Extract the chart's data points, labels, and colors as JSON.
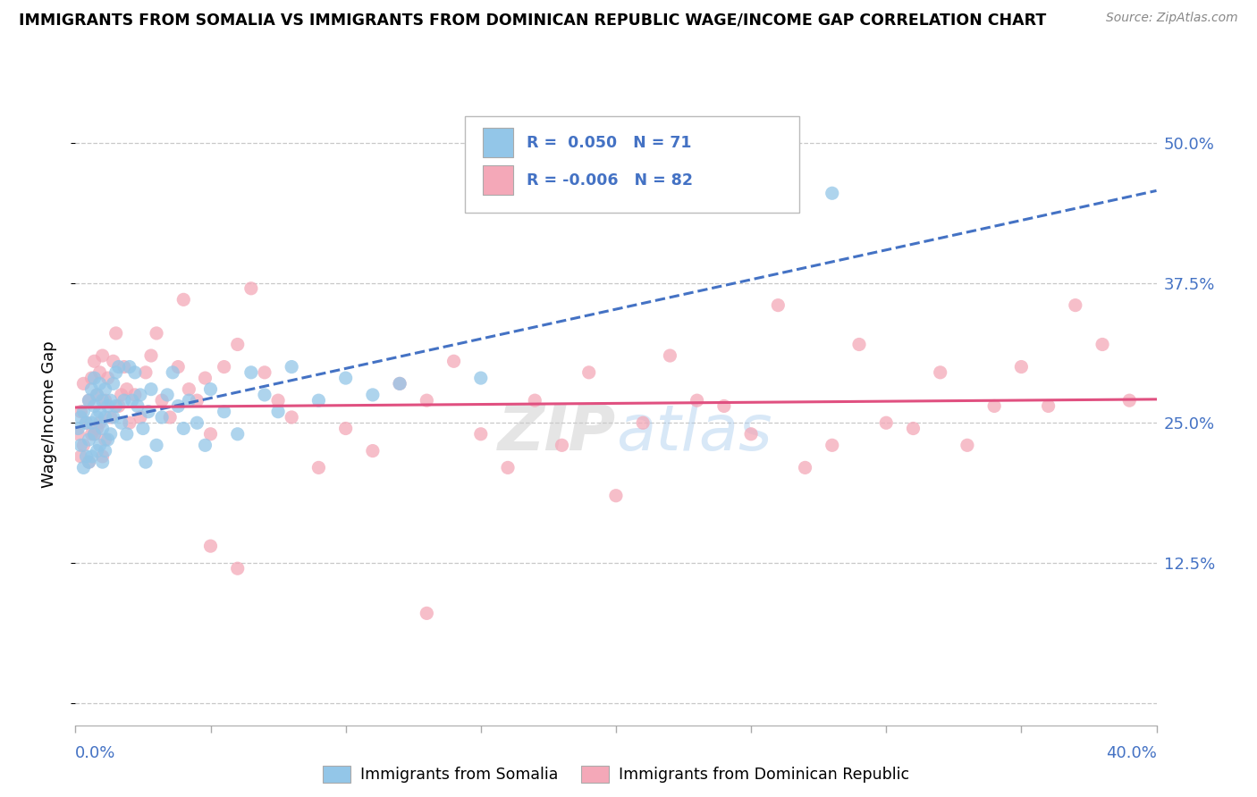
{
  "title": "IMMIGRANTS FROM SOMALIA VS IMMIGRANTS FROM DOMINICAN REPUBLIC WAGE/INCOME GAP CORRELATION CHART",
  "source": "Source: ZipAtlas.com",
  "ylabel": "Wage/Income Gap",
  "right_yticklabels": [
    "",
    "12.5%",
    "25.0%",
    "37.5%",
    "50.0%"
  ],
  "right_yticks": [
    0.0,
    0.125,
    0.25,
    0.375,
    0.5
  ],
  "xlim": [
    0.0,
    0.4
  ],
  "ylim": [
    -0.02,
    0.535
  ],
  "color_somalia": "#93C6E8",
  "color_dr": "#F4A8B8",
  "color_somalia_line": "#4472C4",
  "color_dr_line": "#E05080",
  "legend_label1": "Immigrants from Somalia",
  "legend_label2": "Immigrants from Dominican Republic",
  "somalia_x": [
    0.001,
    0.002,
    0.002,
    0.003,
    0.003,
    0.004,
    0.004,
    0.005,
    0.005,
    0.005,
    0.006,
    0.006,
    0.006,
    0.007,
    0.007,
    0.007,
    0.008,
    0.008,
    0.008,
    0.009,
    0.009,
    0.009,
    0.01,
    0.01,
    0.01,
    0.011,
    0.011,
    0.011,
    0.012,
    0.012,
    0.013,
    0.013,
    0.014,
    0.014,
    0.015,
    0.015,
    0.016,
    0.017,
    0.018,
    0.019,
    0.02,
    0.021,
    0.022,
    0.023,
    0.024,
    0.025,
    0.026,
    0.027,
    0.028,
    0.03,
    0.032,
    0.034,
    0.036,
    0.038,
    0.04,
    0.042,
    0.045,
    0.048,
    0.05,
    0.055,
    0.06,
    0.065,
    0.07,
    0.075,
    0.08,
    0.09,
    0.1,
    0.11,
    0.12,
    0.15,
    0.28
  ],
  "somalia_y": [
    0.245,
    0.255,
    0.23,
    0.26,
    0.21,
    0.25,
    0.22,
    0.27,
    0.235,
    0.215,
    0.28,
    0.25,
    0.22,
    0.29,
    0.265,
    0.24,
    0.275,
    0.255,
    0.225,
    0.285,
    0.26,
    0.23,
    0.27,
    0.245,
    0.215,
    0.28,
    0.255,
    0.225,
    0.265,
    0.235,
    0.27,
    0.24,
    0.285,
    0.255,
    0.295,
    0.265,
    0.3,
    0.25,
    0.27,
    0.24,
    0.3,
    0.27,
    0.295,
    0.265,
    0.275,
    0.245,
    0.215,
    0.26,
    0.28,
    0.23,
    0.255,
    0.275,
    0.295,
    0.265,
    0.245,
    0.27,
    0.25,
    0.23,
    0.28,
    0.26,
    0.24,
    0.295,
    0.275,
    0.26,
    0.3,
    0.27,
    0.29,
    0.275,
    0.285,
    0.29,
    0.455
  ],
  "dr_x": [
    0.001,
    0.002,
    0.002,
    0.003,
    0.003,
    0.004,
    0.005,
    0.005,
    0.006,
    0.006,
    0.007,
    0.007,
    0.008,
    0.008,
    0.009,
    0.009,
    0.01,
    0.01,
    0.011,
    0.011,
    0.012,
    0.013,
    0.014,
    0.015,
    0.016,
    0.017,
    0.018,
    0.019,
    0.02,
    0.022,
    0.024,
    0.026,
    0.028,
    0.03,
    0.032,
    0.035,
    0.038,
    0.04,
    0.042,
    0.045,
    0.048,
    0.05,
    0.055,
    0.06,
    0.065,
    0.07,
    0.075,
    0.08,
    0.09,
    0.1,
    0.11,
    0.12,
    0.13,
    0.14,
    0.15,
    0.16,
    0.17,
    0.18,
    0.19,
    0.2,
    0.21,
    0.22,
    0.23,
    0.24,
    0.25,
    0.26,
    0.27,
    0.28,
    0.29,
    0.3,
    0.31,
    0.32,
    0.33,
    0.34,
    0.35,
    0.36,
    0.37,
    0.38,
    0.39,
    0.05,
    0.06,
    0.13
  ],
  "dr_y": [
    0.24,
    0.26,
    0.22,
    0.285,
    0.23,
    0.25,
    0.27,
    0.215,
    0.29,
    0.24,
    0.305,
    0.24,
    0.275,
    0.245,
    0.295,
    0.25,
    0.31,
    0.22,
    0.27,
    0.235,
    0.29,
    0.255,
    0.305,
    0.33,
    0.265,
    0.275,
    0.3,
    0.28,
    0.25,
    0.275,
    0.255,
    0.295,
    0.31,
    0.33,
    0.27,
    0.255,
    0.3,
    0.36,
    0.28,
    0.27,
    0.29,
    0.24,
    0.3,
    0.32,
    0.37,
    0.295,
    0.27,
    0.255,
    0.21,
    0.245,
    0.225,
    0.285,
    0.27,
    0.305,
    0.24,
    0.21,
    0.27,
    0.23,
    0.295,
    0.185,
    0.25,
    0.31,
    0.27,
    0.265,
    0.24,
    0.355,
    0.21,
    0.23,
    0.32,
    0.25,
    0.245,
    0.295,
    0.23,
    0.265,
    0.3,
    0.265,
    0.355,
    0.32,
    0.27,
    0.14,
    0.12,
    0.08
  ]
}
